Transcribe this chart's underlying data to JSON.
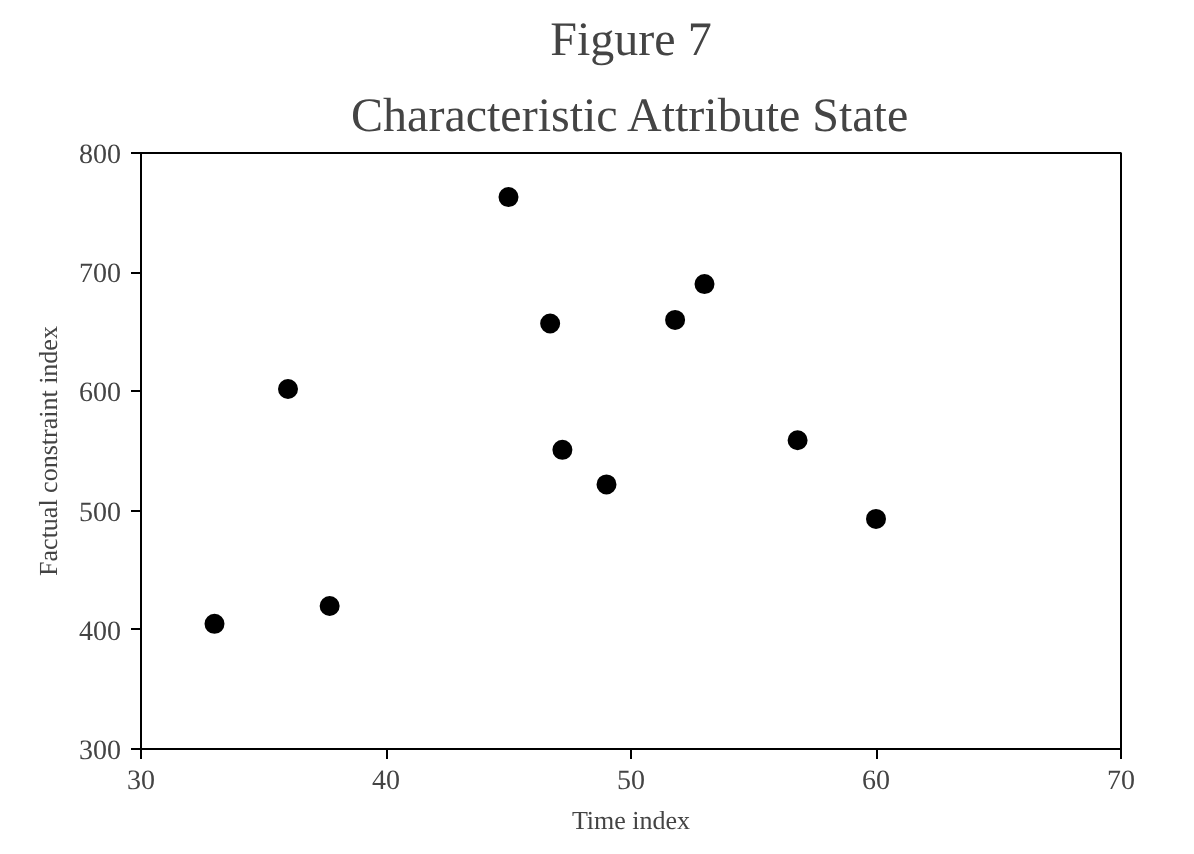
{
  "chart_data": {
    "type": "scatter",
    "title": "Figure 7",
    "subtitle": "Characteristic Attribute State",
    "xlabel": "Time index",
    "ylabel": "Factual constraint index",
    "x": [
      33,
      36,
      37.7,
      45,
      46.7,
      47.2,
      49,
      51.8,
      53,
      56.8,
      60
    ],
    "series": [
      {
        "color": "#000000",
        "values": [
          405,
          602,
          420,
          763,
          657,
          551,
          522,
          660,
          690,
          559,
          493
        ]
      }
    ],
    "xlim": [
      30,
      70
    ],
    "xticks": [
      30,
      40,
      50,
      60,
      70
    ],
    "ylim": [
      300,
      800
    ],
    "yticks": [
      300,
      400,
      500,
      600,
      700,
      800
    ],
    "grid": false,
    "marker": "circle"
  }
}
